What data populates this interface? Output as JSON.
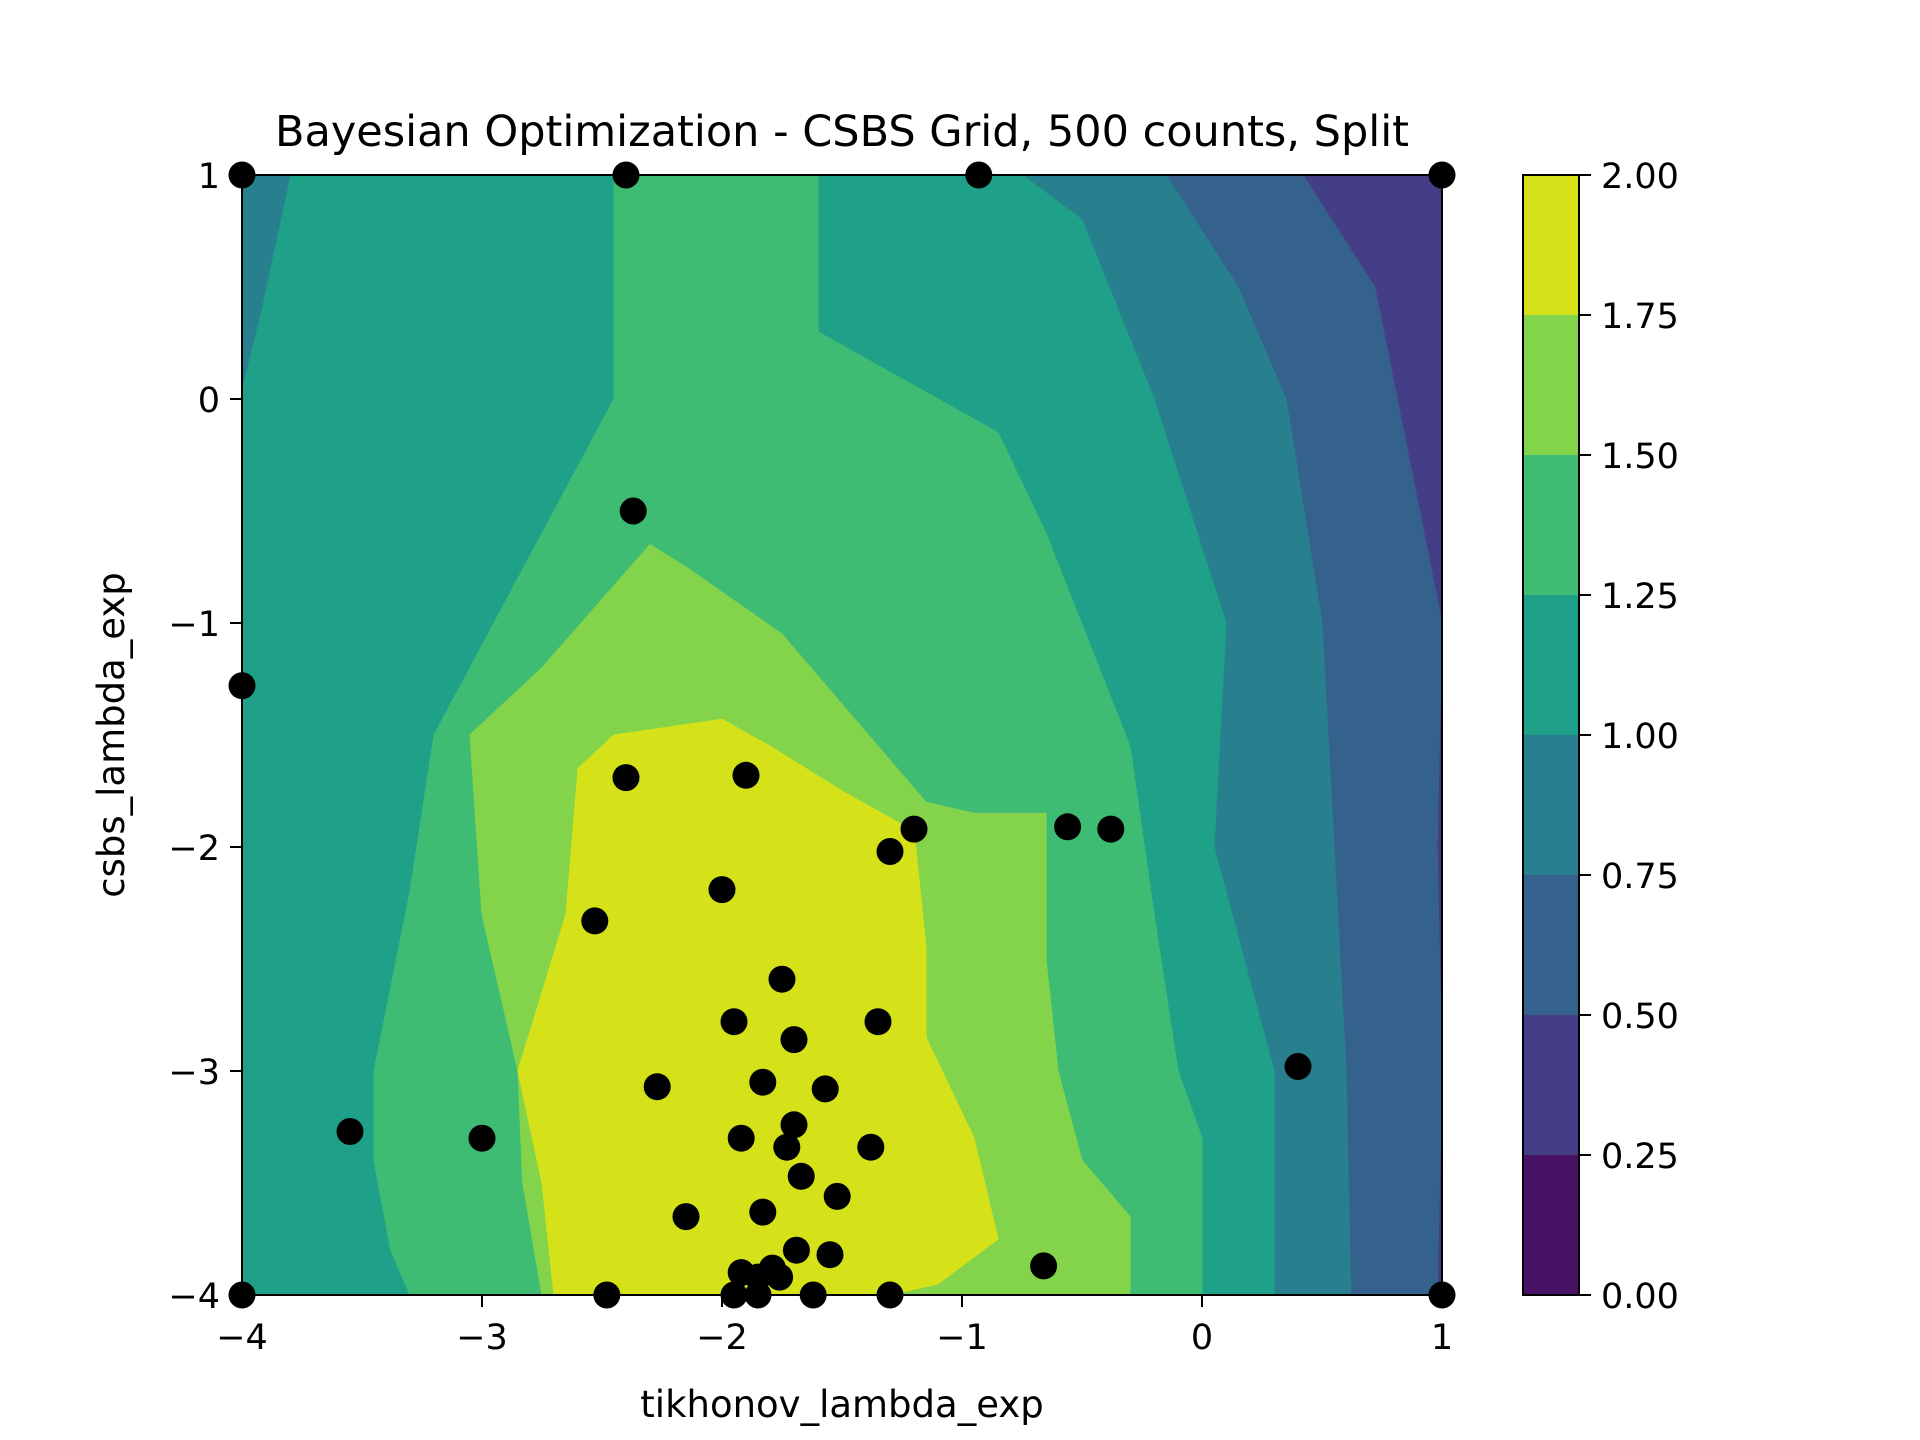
{
  "chart_data": {
    "type": "contour",
    "title": "Bayesian Optimization - CSBS Grid, 500 counts, Split",
    "xlabel": "tikhonov_lambda_exp",
    "ylabel": "csbs_lambda_exp",
    "xlim": [
      -4,
      1
    ],
    "ylim": [
      -4,
      1
    ],
    "x_ticks": [
      -4,
      -3,
      -2,
      -1,
      0,
      1
    ],
    "y_ticks": [
      -4,
      -3,
      -2,
      -1,
      0,
      1
    ],
    "x_tick_labels": [
      "−4",
      "−3",
      "−2",
      "−1",
      "0",
      "1"
    ],
    "y_tick_labels": [
      "−4",
      "−3",
      "−2",
      "−1",
      "0",
      "1"
    ],
    "grid": false,
    "colorbar": {
      "ticks": [
        0.0,
        0.25,
        0.5,
        0.75,
        1.0,
        1.25,
        1.5,
        1.75,
        2.0
      ],
      "tick_labels": [
        "0.00",
        "0.25",
        "0.50",
        "0.75",
        "1.00",
        "1.25",
        "1.50",
        "1.75",
        "2.00"
      ],
      "level_colors": [
        "#471164",
        "#433e85",
        "#35618d",
        "#28808e",
        "#1fa088",
        "#3fbc73",
        "#84d44b",
        "#d5e21a"
      ]
    },
    "contour_regions": [
      {
        "level": [
          0.25,
          0.5
        ],
        "polygon": [
          [
            0.42,
            1.0
          ],
          [
            1.0,
            1.0
          ],
          [
            1.0,
            -4.0
          ],
          [
            0.98,
            -4.0
          ],
          [
            1.0,
            -3.0
          ],
          [
            0.98,
            -2.0
          ],
          [
            1.0,
            -1.0
          ],
          [
            0.72,
            0.5
          ]
        ]
      },
      {
        "level": [
          0.5,
          0.75
        ],
        "polygon": [
          [
            -0.15,
            1.0
          ],
          [
            0.42,
            1.0
          ],
          [
            0.72,
            0.5
          ],
          [
            1.0,
            -1.0
          ],
          [
            0.98,
            -2.0
          ],
          [
            1.0,
            -3.0
          ],
          [
            0.98,
            -4.0
          ],
          [
            0.62,
            -4.0
          ],
          [
            0.6,
            -3.0
          ],
          [
            0.55,
            -2.0
          ],
          [
            0.5,
            -1.0
          ],
          [
            0.35,
            0.0
          ],
          [
            0.15,
            0.5
          ]
        ]
      },
      {
        "level": [
          0.75,
          1.0
        ],
        "polygon": [
          [
            -0.75,
            1.0
          ],
          [
            -0.15,
            1.0
          ],
          [
            0.15,
            0.5
          ],
          [
            0.35,
            0.0
          ],
          [
            0.5,
            -1.0
          ],
          [
            0.55,
            -2.0
          ],
          [
            0.6,
            -3.0
          ],
          [
            0.62,
            -4.0
          ],
          [
            0.3,
            -4.0
          ],
          [
            0.3,
            -3.0
          ],
          [
            0.05,
            -2.0
          ],
          [
            0.1,
            -1.0
          ],
          [
            -0.2,
            0.0
          ],
          [
            -0.5,
            0.8
          ]
        ]
      },
      {
        "level": [
          1.0,
          1.25
        ],
        "polygon": [
          [
            -1.6,
            1.0
          ],
          [
            -0.75,
            1.0
          ],
          [
            -0.5,
            0.8
          ],
          [
            -0.2,
            0.0
          ],
          [
            0.1,
            -1.0
          ],
          [
            0.05,
            -2.0
          ],
          [
            0.3,
            -3.0
          ],
          [
            0.3,
            -4.0
          ],
          [
            -2.4,
            -4.0
          ],
          [
            -2.55,
            -3.7
          ],
          [
            -2.8,
            -3.2
          ],
          [
            -2.95,
            -2.4
          ],
          [
            -3.05,
            -1.8
          ],
          [
            -3.1,
            -1.6
          ],
          [
            -3.6,
            -1.4
          ],
          [
            -3.7,
            -1.6
          ],
          [
            -3.75,
            -2.3
          ],
          [
            -3.8,
            -3.1
          ],
          [
            -3.87,
            -3.9
          ],
          [
            -4.0,
            -4.0
          ],
          [
            -4.0,
            0.05
          ],
          [
            -3.8,
            1.0
          ]
        ]
      },
      {
        "level": [
          0.75,
          1.0
        ],
        "polygon": [
          [
            -4.0,
            1.0
          ],
          [
            -3.8,
            1.0
          ],
          [
            -3.92,
            0.4
          ],
          [
            -4.0,
            0.05
          ]
        ]
      },
      {
        "level": [
          1.25,
          1.5
        ],
        "polygon": [
          [
            -2.45,
            1.0
          ],
          [
            -1.6,
            1.0
          ],
          [
            -1.6,
            0.3
          ],
          [
            -0.85,
            -0.15
          ],
          [
            -0.65,
            -0.6
          ],
          [
            -0.3,
            -1.55
          ],
          [
            -0.2,
            -2.3
          ],
          [
            -0.1,
            -3.0
          ],
          [
            0.0,
            -3.3
          ],
          [
            0.0,
            -4.0
          ],
          [
            -3.3,
            -4.0
          ],
          [
            -3.38,
            -3.8
          ],
          [
            -3.45,
            -3.4
          ],
          [
            -3.45,
            -3.0
          ],
          [
            -3.3,
            -2.2
          ],
          [
            -3.2,
            -1.5
          ],
          [
            -2.9,
            -0.9
          ],
          [
            -2.45,
            0.0
          ]
        ]
      },
      {
        "level": [
          1.5,
          1.75
        ],
        "polygon": [
          [
            -2.3,
            -0.65
          ],
          [
            -2.15,
            -0.75
          ],
          [
            -1.75,
            -1.05
          ],
          [
            -1.35,
            -1.55
          ],
          [
            -1.15,
            -1.8
          ],
          [
            -0.95,
            -1.85
          ],
          [
            -0.65,
            -1.85
          ],
          [
            -0.65,
            -2.5
          ],
          [
            -0.6,
            -3.0
          ],
          [
            -0.5,
            -3.4
          ],
          [
            -0.3,
            -3.65
          ],
          [
            -0.3,
            -4.0
          ],
          [
            -2.75,
            -4.0
          ],
          [
            -2.83,
            -3.5
          ],
          [
            -2.85,
            -3.0
          ],
          [
            -3.0,
            -2.3
          ],
          [
            -3.05,
            -1.5
          ],
          [
            -2.75,
            -1.2
          ]
        ]
      },
      {
        "level": [
          1.75,
          2.0
        ],
        "polygon": [
          [
            -2.45,
            -1.5
          ],
          [
            -2.0,
            -1.43
          ],
          [
            -1.8,
            -1.55
          ],
          [
            -1.5,
            -1.75
          ],
          [
            -1.2,
            -1.93
          ],
          [
            -1.15,
            -2.45
          ],
          [
            -1.15,
            -2.85
          ],
          [
            -0.95,
            -3.3
          ],
          [
            -0.85,
            -3.75
          ],
          [
            -1.1,
            -3.95
          ],
          [
            -1.3,
            -4.0
          ],
          [
            -2.7,
            -4.0
          ],
          [
            -2.75,
            -3.5
          ],
          [
            -2.85,
            -3.0
          ],
          [
            -2.65,
            -2.3
          ],
          [
            -2.6,
            -1.65
          ]
        ]
      }
    ],
    "points": [
      [
        -4.0,
        1.0
      ],
      [
        -2.4,
        1.0
      ],
      [
        -0.93,
        1.0
      ],
      [
        1.0,
        1.0
      ],
      [
        -2.37,
        -0.5
      ],
      [
        -4.0,
        -1.28
      ],
      [
        -2.4,
        -1.69
      ],
      [
        -1.9,
        -1.68
      ],
      [
        -1.2,
        -1.92
      ],
      [
        -1.3,
        -2.02
      ],
      [
        -0.56,
        -1.91
      ],
      [
        -0.38,
        -1.92
      ],
      [
        -2.0,
        -2.19
      ],
      [
        -2.53,
        -2.33
      ],
      [
        -1.75,
        -2.59
      ],
      [
        -1.95,
        -2.78
      ],
      [
        -1.35,
        -2.78
      ],
      [
        -1.7,
        -2.86
      ],
      [
        0.4,
        -2.98
      ],
      [
        -2.27,
        -3.07
      ],
      [
        -1.83,
        -3.05
      ],
      [
        -1.57,
        -3.08
      ],
      [
        -3.55,
        -3.27
      ],
      [
        -3.0,
        -3.3
      ],
      [
        -1.92,
        -3.3
      ],
      [
        -1.7,
        -3.24
      ],
      [
        -1.73,
        -3.34
      ],
      [
        -1.38,
        -3.34
      ],
      [
        -1.67,
        -3.47
      ],
      [
        -1.52,
        -3.56
      ],
      [
        -2.15,
        -3.65
      ],
      [
        -1.83,
        -3.63
      ],
      [
        -1.69,
        -3.8
      ],
      [
        -1.55,
        -3.82
      ],
      [
        -0.66,
        -3.87
      ],
      [
        -1.92,
        -3.9
      ],
      [
        -1.79,
        -3.88
      ],
      [
        -1.85,
        -3.92
      ],
      [
        -1.76,
        -3.92
      ],
      [
        -4.0,
        -4.0
      ],
      [
        -2.48,
        -4.0
      ],
      [
        -1.95,
        -4.0
      ],
      [
        -1.85,
        -4.0
      ],
      [
        -1.62,
        -4.0
      ],
      [
        -1.3,
        -4.0
      ],
      [
        1.0,
        -4.0
      ]
    ]
  }
}
